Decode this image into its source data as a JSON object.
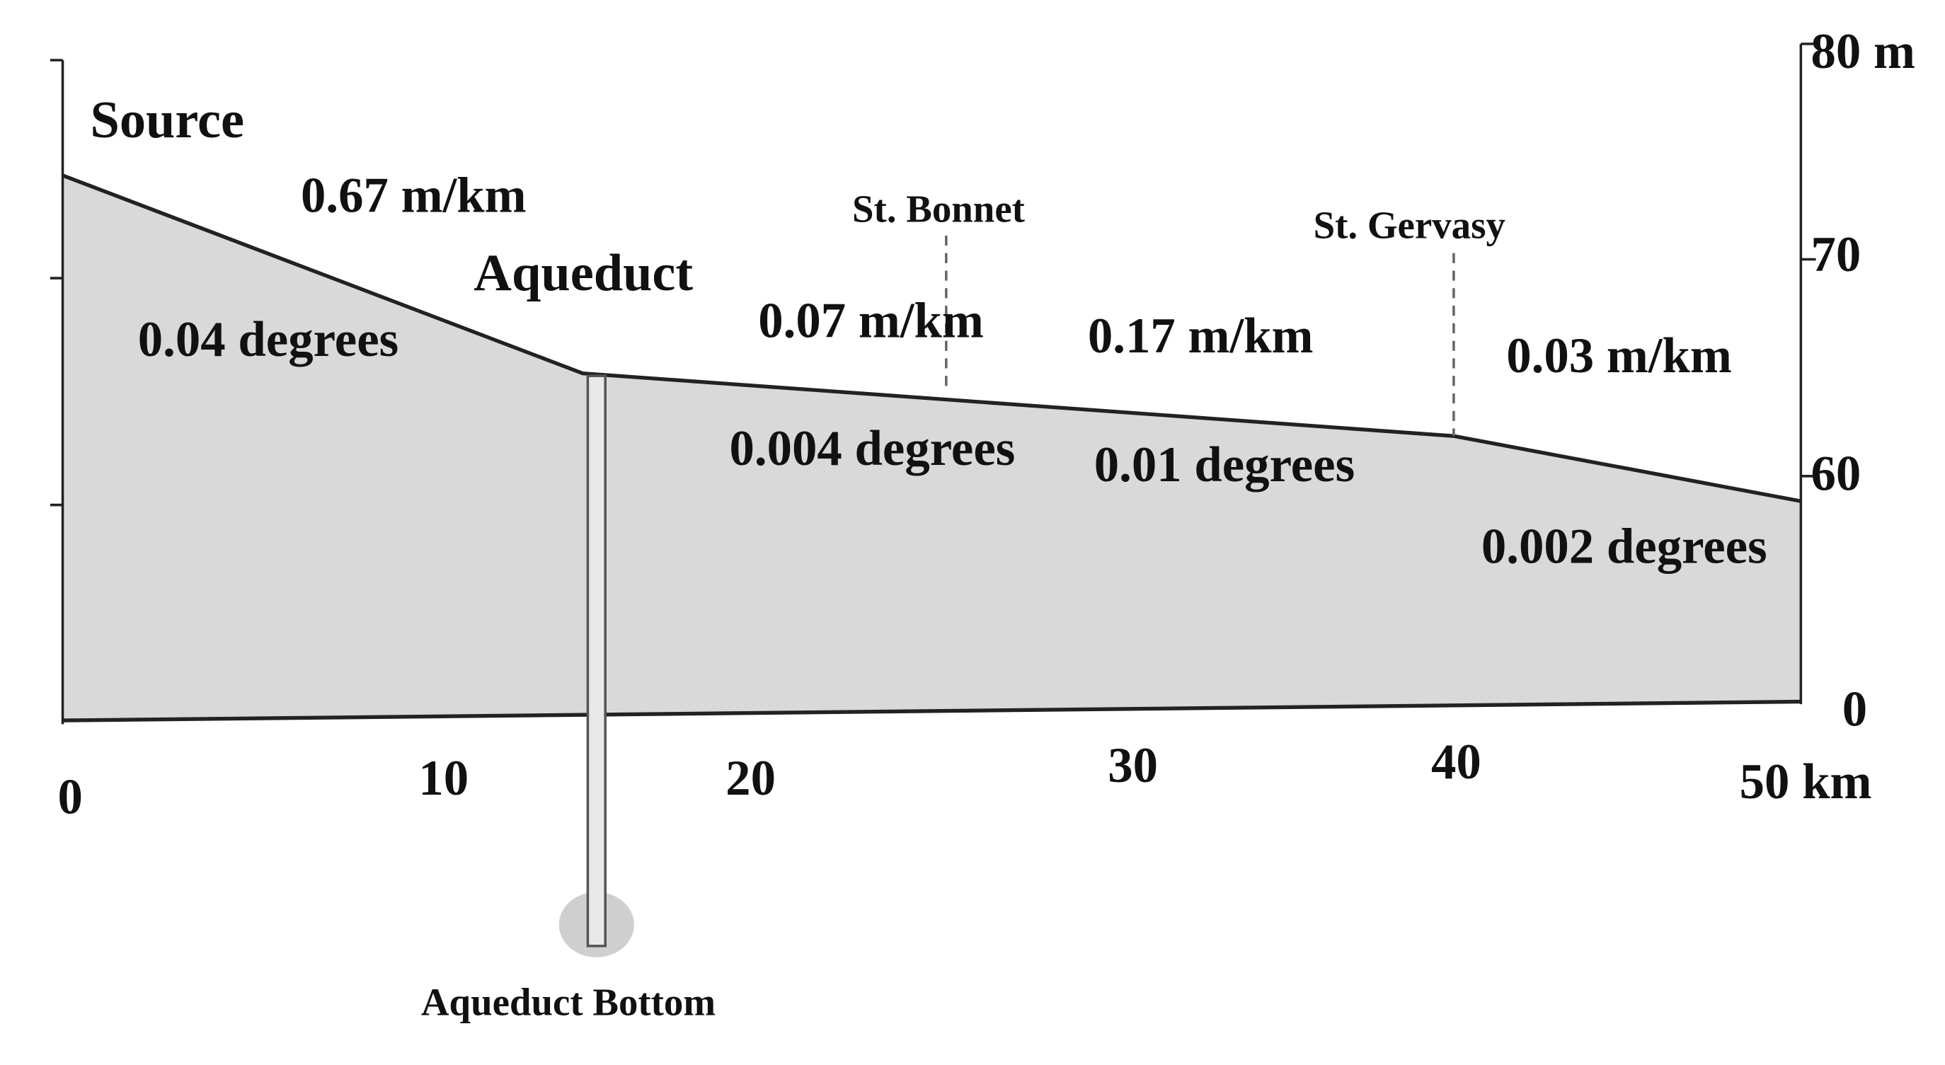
{
  "title": "Source",
  "places": {
    "aqueduct": "Aqueduct",
    "aqueduct_bottom": "Aqueduct Bottom",
    "st_bonnet": "St. Bonnet",
    "st_gervasy": "St. Gervasy"
  },
  "segments": [
    {
      "gradient": "0.67 m/km",
      "angle": "0.04 degrees"
    },
    {
      "gradient": "0.07 m/km",
      "angle": "0.004 degrees"
    },
    {
      "gradient": "0.17 m/km",
      "angle": "0.01 degrees"
    },
    {
      "gradient": "0.03 m/km",
      "angle": "0.002 degrees"
    }
  ],
  "x_axis": {
    "ticks": [
      "0",
      "10",
      "20",
      "30",
      "40",
      "50 km"
    ]
  },
  "y_axis": {
    "ticks": [
      "80 m",
      "70",
      "60",
      "0"
    ]
  }
}
